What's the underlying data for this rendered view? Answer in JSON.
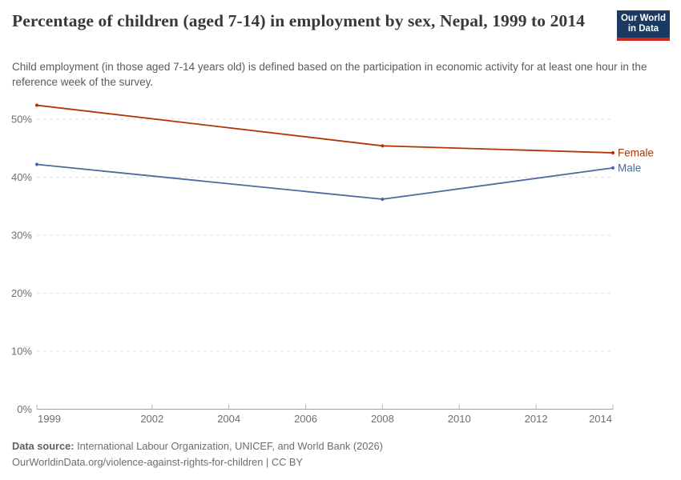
{
  "header": {
    "title": "Percentage of children (aged 7-14) in employment by sex, Nepal, 1999 to 2014",
    "subtitle": "Child employment (in those aged 7-14 years old) is defined based on the participation in economic activity for at least one hour in the reference week of the survey.",
    "logo": {
      "line1": "Our World",
      "line2": "in Data",
      "bg_color": "#1a3a62",
      "stripe_color": "#cd2a1e"
    }
  },
  "chart_data": {
    "type": "line",
    "title": "Percentage of children (aged 7-14) in employment by sex, Nepal, 1999 to 2014",
    "x": [
      1999,
      2008,
      2014
    ],
    "series": [
      {
        "name": "Female",
        "color": "#b13507",
        "values": [
          52.4,
          45.4,
          44.2
        ]
      },
      {
        "name": "Male",
        "color": "#4c6a9c",
        "values": [
          42.2,
          36.2,
          41.6
        ]
      }
    ],
    "xticks": [
      1999,
      2002,
      2004,
      2006,
      2008,
      2010,
      2012,
      2014
    ],
    "yticks": [
      0,
      10,
      20,
      30,
      40,
      50
    ],
    "ytick_suffix": "%",
    "xlim": [
      1999,
      2014
    ],
    "ylim": [
      0,
      53.3
    ],
    "grid": "horizontal-dashed",
    "legend_position": "right-end-labels",
    "colors": {
      "grid": "#dedede",
      "axis": "#a0a0a0",
      "tick": "#b5b5b5",
      "tick_label": "#6e6e6e"
    }
  },
  "footer": {
    "datasource_label": "Data source:",
    "datasource_text": "International Labour Organization, UNICEF, and World Bank (2026)",
    "url_line": "OurWorldinData.org/violence-against-rights-for-children | CC BY"
  }
}
